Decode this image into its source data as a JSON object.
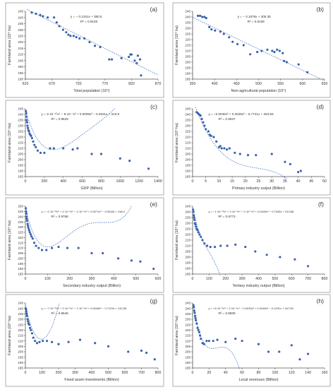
{
  "figure": {
    "ylabel": "Farmland area (10⁴ ha)"
  },
  "chart_data": [
    {
      "panel": "(a)",
      "type": "scatter",
      "xlabel": "Total population (10⁴)",
      "ylabel": "Farmland area (10⁴ ha)",
      "xlim": [
        620,
        870
      ],
      "ylim": [
        190,
        245
      ],
      "xticks": [
        620,
        670,
        720,
        770,
        820,
        870
      ],
      "yticks": [
        190,
        195,
        200,
        205,
        210,
        215,
        220,
        225,
        230,
        235,
        240,
        245
      ],
      "fit_type": "linear",
      "fit_coeffs": [
        380.5,
        -0.2151
      ],
      "equation": [
        "y = − 0.2151x + 380.5",
        "R² = 0.9108"
      ],
      "x": [
        632,
        640,
        648,
        653,
        662,
        674,
        679,
        684,
        691,
        697,
        701,
        705,
        711,
        716,
        722,
        731,
        741,
        751,
        761,
        778,
        783,
        801,
        815,
        818,
        820,
        826,
        830,
        832,
        836,
        838
      ],
      "y": [
        244,
        243,
        242,
        241,
        240,
        240,
        236,
        233,
        230,
        228,
        226,
        225,
        225,
        224,
        223,
        223,
        220,
        217,
        216,
        206,
        206,
        207,
        208,
        210,
        210,
        205,
        203,
        209,
        206,
        193
      ]
    },
    {
      "panel": "(b)",
      "type": "scatter",
      "xlabel": "Non-agricultural population (10⁴)",
      "ylabel": "Farmland area (10⁴ ha)",
      "xlim": [
        350,
        650
      ],
      "ylim": [
        185,
        245
      ],
      "xticks": [
        350,
        400,
        450,
        500,
        550,
        600,
        650
      ],
      "yticks": [
        185,
        190,
        195,
        200,
        205,
        210,
        215,
        220,
        225,
        230,
        235,
        240,
        245
      ],
      "fit_type": "linear",
      "fit_coeffs": [
        305.35,
        -0.1876
      ],
      "equation": [
        "y = − 0.1876x + 305.35",
        "R² = 0.9169"
      ],
      "x": [
        362,
        367,
        372,
        377,
        381,
        388,
        393,
        401,
        413,
        421,
        433,
        441,
        452,
        466,
        481,
        497,
        507,
        520,
        531,
        536,
        542,
        548,
        555,
        558,
        564,
        591,
        611
      ],
      "y": [
        241,
        241,
        240,
        240,
        239,
        231,
        229,
        228,
        227,
        225,
        222,
        218,
        216,
        215,
        207,
        209,
        210,
        211,
        210,
        209,
        211,
        210,
        208,
        201,
        200,
        198,
        191
      ]
    },
    {
      "panel": "(c)",
      "type": "scatter",
      "xlabel": "GDP (Billion)",
      "ylabel": "Farmland area (10⁴ ha)",
      "xlim": [
        0,
        1400
      ],
      "ylim": [
        185,
        245
      ],
      "xticks": [
        0,
        200,
        400,
        600,
        800,
        1000,
        1200,
        1400
      ],
      "yticks": [
        185,
        190,
        195,
        200,
        205,
        210,
        215,
        220,
        225,
        230,
        235,
        240,
        245
      ],
      "fit_type": "polynomial",
      "fit_coeffs": [
        243.9,
        -0.2931,
        0.0008,
        -8e-07,
        3e-10
      ],
      "equation": [
        "y = 3·10⁻¹⁰x⁴ − 8·10⁻⁷x³ + 0.0008x² − 0.2931x + 243.9",
        "R² = 0.9629"
      ],
      "x": [
        5,
        8,
        11,
        14,
        18,
        22,
        27,
        32,
        38,
        45,
        52,
        60,
        70,
        82,
        95,
        110,
        130,
        160,
        200,
        260,
        300,
        400,
        500,
        550,
        700,
        800,
        1000,
        1100,
        1300
      ],
      "y": [
        243,
        241,
        238,
        235,
        233,
        230,
        228,
        226,
        225,
        223,
        222,
        221,
        219,
        216,
        213,
        211,
        208,
        206,
        206,
        210,
        210,
        210,
        209,
        210,
        205,
        205,
        201,
        199,
        192
      ]
    },
    {
      "panel": "(d)",
      "type": "scatter",
      "xlabel": "Primary industry output (Billion)",
      "ylabel": "Farmland area (10⁴ ha)",
      "xlim": [
        0,
        50
      ],
      "ylim": [
        185,
        245
      ],
      "xticks": [
        0,
        5,
        10,
        15,
        20,
        25,
        30,
        35,
        40,
        45,
        50
      ],
      "yticks": [
        185,
        190,
        195,
        200,
        205,
        210,
        215,
        220,
        225,
        230,
        235,
        240,
        245
      ],
      "fit_type": "polynomial",
      "fit_coeffs": [
        253.65,
        -6.7741,
        0.2628,
        -0.0036
      ],
      "equation": [
        "y = −0.0036x³ + 0.2628x² − 6.7741x + 253.65",
        "R² = 0.9637"
      ],
      "x": [
        1.5,
        2,
        2.5,
        3,
        3.5,
        4,
        4.5,
        5,
        6,
        6.5,
        7,
        8,
        9,
        10,
        10.5,
        11,
        12,
        13,
        14,
        16,
        18,
        21,
        24,
        30,
        35,
        37,
        40,
        41
      ],
      "y": [
        242,
        241,
        240,
        239,
        236,
        233,
        230,
        227,
        225,
        222,
        221,
        220,
        216,
        211,
        212,
        210,
        210,
        209,
        210,
        206,
        205,
        204,
        204,
        205,
        198,
        196,
        189,
        190
      ]
    },
    {
      "panel": "(e)",
      "type": "scatter",
      "xlabel": "Secondary industry output (Billion)",
      "ylabel": "Farmland area (10⁴ ha)",
      "xlim": [
        0,
        600
      ],
      "ylim": [
        185,
        250
      ],
      "xticks": [
        0,
        100,
        200,
        300,
        400,
        500,
        600
      ],
      "yticks": [
        185,
        190,
        195,
        200,
        205,
        210,
        215,
        220,
        225,
        230,
        235,
        240,
        245,
        250
      ],
      "fit_type": "polynomial",
      "fit_coeffs": [
        248.2,
        -0.9018,
        0.0071,
        -2e-05,
        2e-08,
        -2e-12
      ],
      "equation": [
        "y = −2·10⁻¹²x⁵ + 2·10⁻⁸x⁴ − 2·10⁻⁵x³ + 0.0071x² − 0.9018x + 248.2",
        "R² = 0.9786"
      ],
      "x": [
        2,
        3,
        4,
        5,
        6,
        8,
        10,
        12,
        14,
        17,
        20,
        24,
        28,
        33,
        40,
        48,
        60,
        75,
        95,
        120,
        150,
        190,
        240,
        300,
        350,
        420,
        480,
        520,
        580
      ],
      "y": [
        248,
        245,
        243,
        240,
        238,
        236,
        233,
        231,
        229,
        227,
        225,
        223,
        221,
        219,
        215,
        212,
        210,
        208,
        208,
        210,
        211,
        210,
        210,
        205,
        205,
        200,
        198,
        197,
        190
      ]
    },
    {
      "panel": "(f)",
      "type": "scatter",
      "xlabel": "Tertiary industry output (Billion)",
      "ylabel": "Farmland area (10⁴ ha)",
      "xlim": [
        0,
        800
      ],
      "ylim": [
        185,
        245
      ],
      "xticks": [
        0,
        100,
        200,
        300,
        400,
        500,
        600,
        700,
        800
      ],
      "yticks": [
        185,
        190,
        195,
        200,
        205,
        210,
        215,
        220,
        225,
        230,
        235,
        240,
        245
      ],
      "fit_type": "polynomial",
      "fit_coeffs": [
        243.86,
        -0.7045,
        0.0049,
        -2e-05,
        2e-08,
        -1e-11
      ],
      "equation": [
        "y = −1·10⁻¹¹x⁵ + 2·10⁻⁸x⁴ − 2·10⁻⁵x³ + 0.0049x² − 0.7045x + 243.86",
        "R² = 0.9773"
      ],
      "x": [
        3,
        5,
        7,
        9,
        11,
        14,
        17,
        20,
        24,
        29,
        35,
        42,
        50,
        60,
        72,
        88,
        108,
        135,
        170,
        210,
        260,
        320,
        380,
        450,
        530,
        620,
        700
      ],
      "y": [
        242,
        240,
        237,
        235,
        233,
        230,
        229,
        227,
        225,
        224,
        222,
        220,
        218,
        215,
        212,
        210,
        209,
        209,
        210,
        210,
        211,
        209,
        205,
        202,
        200,
        198,
        192
      ]
    },
    {
      "panel": "(g)",
      "type": "scatter",
      "xlabel": "Fixed asset investments (Billion)",
      "ylabel": "Farmland area (10⁴ ha)",
      "xlim": [
        0,
        800
      ],
      "ylim": [
        185,
        245
      ],
      "xticks": [
        0,
        100,
        200,
        300,
        400,
        500,
        600,
        700,
        800
      ],
      "yticks": [
        185,
        190,
        195,
        200,
        205,
        210,
        215,
        220,
        225,
        230,
        235,
        240,
        245
      ],
      "fit_type": "polynomial",
      "fit_coeffs": [
        242.85,
        -0.7123,
        0.0048,
        -1e-05,
        2e-08,
        -7e-12
      ],
      "equation": [
        "y = −7·10⁻¹²x⁵ + 2·10⁻⁸x⁴ − 1·10⁻⁵x³ + 0.0048x² − 0.7123x + 242.85",
        "R² = 0.9646"
      ],
      "x": [
        2,
        4,
        6,
        8,
        10,
        13,
        16,
        19,
        23,
        28,
        33,
        40,
        48,
        58,
        70,
        85,
        105,
        130,
        160,
        200,
        260,
        330,
        420,
        500,
        620,
        700,
        730,
        780
      ],
      "y": [
        240,
        239,
        237,
        235,
        233,
        230,
        228,
        226,
        225,
        222,
        220,
        217,
        213,
        210,
        208,
        209,
        210,
        210,
        209,
        207,
        209,
        211,
        208,
        205,
        200,
        201,
        199,
        193
      ]
    },
    {
      "panel": "(h)",
      "type": "scatter",
      "xlabel": "Local revenues (Billion)",
      "ylabel": "Farmland area (10⁴ ha)",
      "xlim": [
        0,
        160
      ],
      "ylim": [
        185,
        245
      ],
      "xticks": [
        0,
        20,
        40,
        60,
        80,
        100,
        120,
        140,
        160
      ],
      "yticks": [
        185,
        190,
        195,
        200,
        205,
        210,
        215,
        220,
        225,
        230,
        235,
        240,
        245
      ],
      "fit_type": "polynomial",
      "fit_coeffs": [
        247.69,
        -5.1291,
        0.2046,
        -0.0033,
        2e-05,
        -6e-08
      ],
      "equation": [
        "y = −6·10⁻⁸x⁵ + 2·10⁻⁵x⁴ − 0.0033x³ + 0.2046x² − 5.1291x + 247.69",
        "R² = 0.8606"
      ],
      "x": [
        1,
        1.5,
        2,
        2.5,
        3,
        3.5,
        4,
        5,
        6,
        7,
        8,
        9,
        10,
        12,
        14,
        17,
        20,
        25,
        30,
        40,
        52,
        60,
        80,
        92,
        105,
        120,
        130,
        140
      ],
      "y": [
        243,
        241,
        238,
        236,
        233,
        231,
        229,
        226,
        222,
        220,
        218,
        215,
        212,
        208,
        207,
        210,
        210,
        210,
        211,
        209,
        212,
        210,
        207,
        200,
        200,
        206,
        193,
        198
      ]
    }
  ]
}
